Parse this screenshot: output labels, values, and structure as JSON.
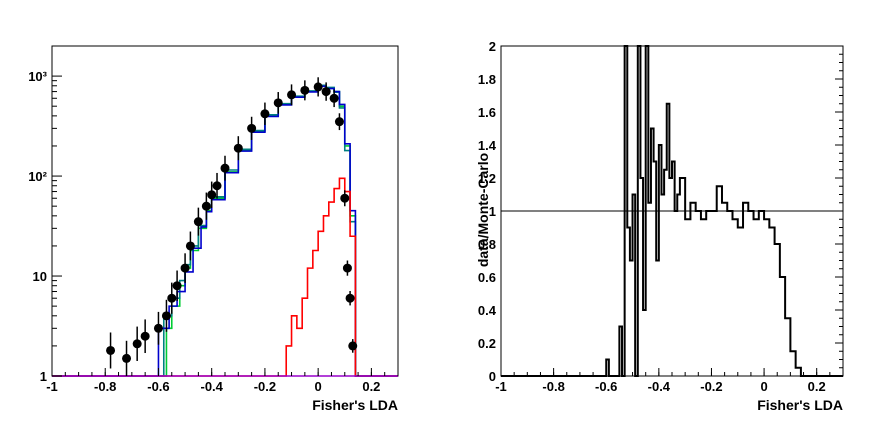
{
  "chart_data": [
    {
      "type": "line",
      "xlabel": "Fisher's LDA",
      "ylabel": "",
      "xlim": [
        -1,
        0.3
      ],
      "ylim": [
        1,
        2000
      ],
      "yscale": "log",
      "grid": false,
      "x_ticks": [
        "-1",
        "-0.8",
        "-0.6",
        "-0.4",
        "-0.2",
        "0",
        "0.2"
      ],
      "y_ticks": [
        "1",
        "10",
        "10²",
        "10³"
      ],
      "series": [
        {
          "color": "#00cc33",
          "style": "step",
          "x": [
            -1.0,
            -0.6,
            -0.57,
            -0.55,
            -0.52,
            -0.5,
            -0.48,
            -0.45,
            -0.42,
            -0.4,
            -0.35,
            -0.3,
            -0.25,
            -0.2,
            -0.15,
            -0.1,
            -0.05,
            0.0,
            0.03,
            0.06,
            0.08,
            0.1,
            0.12,
            0.14,
            0.3
          ],
          "y": [
            1,
            1,
            3,
            5,
            8,
            12,
            18,
            30,
            45,
            60,
            110,
            180,
            280,
            400,
            520,
            620,
            700,
            800,
            760,
            700,
            500,
            200,
            40,
            1,
            1
          ]
        },
        {
          "color": "#008080",
          "style": "step",
          "x": [
            -1.0,
            -0.6,
            -0.58,
            -0.55,
            -0.52,
            -0.5,
            -0.48,
            -0.45,
            -0.42,
            -0.4,
            -0.35,
            -0.3,
            -0.25,
            -0.2,
            -0.15,
            -0.1,
            -0.05,
            0.0,
            0.03,
            0.06,
            0.08,
            0.1,
            0.12,
            0.14,
            0.3
          ],
          "y": [
            1,
            1,
            4,
            6,
            9,
            13,
            20,
            32,
            48,
            62,
            115,
            185,
            285,
            410,
            530,
            630,
            710,
            810,
            770,
            690,
            480,
            180,
            35,
            1,
            1
          ]
        },
        {
          "color": "#0000cc",
          "style": "step",
          "x": [
            -1.0,
            -0.62,
            -0.6,
            -0.56,
            -0.53,
            -0.5,
            -0.47,
            -0.44,
            -0.42,
            -0.4,
            -0.35,
            -0.3,
            -0.25,
            -0.2,
            -0.15,
            -0.1,
            -0.05,
            0.0,
            0.03,
            0.06,
            0.08,
            0.1,
            0.12,
            0.14,
            0.3
          ],
          "y": [
            1,
            1,
            3,
            5,
            7,
            11,
            19,
            31,
            44,
            58,
            108,
            178,
            275,
            395,
            515,
            615,
            695,
            790,
            750,
            700,
            520,
            210,
            45,
            1,
            1
          ]
        },
        {
          "color": "#ff0000",
          "style": "step",
          "x": [
            -1.0,
            -0.14,
            -0.12,
            -0.1,
            -0.08,
            -0.06,
            -0.04,
            -0.02,
            0.0,
            0.02,
            0.04,
            0.06,
            0.08,
            0.1,
            0.12,
            0.14,
            0.3
          ],
          "y": [
            1,
            1,
            2,
            4,
            3,
            6,
            12,
            18,
            28,
            40,
            55,
            75,
            95,
            70,
            25,
            1,
            1
          ]
        },
        {
          "color": "#9900cc",
          "style": "step",
          "x": [
            -1.0,
            0.3
          ],
          "y": [
            1,
            1
          ]
        },
        {
          "color": "#000000",
          "style": "markers",
          "x": [
            -0.78,
            -0.72,
            -0.68,
            -0.65,
            -0.6,
            -0.57,
            -0.55,
            -0.53,
            -0.5,
            -0.48,
            -0.45,
            -0.42,
            -0.4,
            -0.38,
            -0.35,
            -0.3,
            -0.25,
            -0.2,
            -0.15,
            -0.1,
            -0.05,
            0.0,
            0.03,
            0.06,
            0.08,
            0.1,
            0.11,
            0.12,
            0.13
          ],
          "y": [
            1.8,
            1.5,
            2.1,
            2.5,
            3,
            4,
            6,
            8,
            12,
            20,
            35,
            50,
            65,
            80,
            120,
            190,
            300,
            420,
            540,
            650,
            720,
            780,
            700,
            600,
            350,
            60,
            12,
            6,
            2
          ]
        }
      ]
    },
    {
      "type": "line",
      "xlabel": "Fisher's LDA",
      "ylabel": "data/Monte-Carlo",
      "xlim": [
        -1,
        0.3
      ],
      "ylim": [
        0,
        2
      ],
      "grid": false,
      "reference_line": 1,
      "x_ticks": [
        "-1",
        "-0.8",
        "-0.6",
        "-0.4",
        "-0.2",
        "0",
        "0.2"
      ],
      "y_ticks": [
        "0",
        "0.2",
        "0.4",
        "0.6",
        "0.8",
        "1",
        "1.2",
        "1.4",
        "1.6",
        "1.8",
        "2"
      ],
      "series": [
        {
          "color": "#000000",
          "style": "step",
          "x": [
            -1.0,
            -0.6,
            -0.59,
            -0.55,
            -0.54,
            -0.53,
            -0.52,
            -0.51,
            -0.5,
            -0.49,
            -0.48,
            -0.47,
            -0.46,
            -0.45,
            -0.44,
            -0.43,
            -0.42,
            -0.41,
            -0.4,
            -0.39,
            -0.38,
            -0.37,
            -0.36,
            -0.35,
            -0.34,
            -0.33,
            -0.32,
            -0.3,
            -0.28,
            -0.26,
            -0.24,
            -0.22,
            -0.2,
            -0.18,
            -0.16,
            -0.14,
            -0.12,
            -0.1,
            -0.08,
            -0.06,
            -0.04,
            -0.02,
            0.0,
            0.02,
            0.04,
            0.06,
            0.08,
            0.1,
            0.12,
            0.14,
            0.3
          ],
          "y": [
            0,
            0.1,
            0,
            0.3,
            0,
            2,
            0.9,
            0.7,
            1.1,
            0,
            2,
            1.2,
            0.4,
            2,
            1.05,
            1.5,
            1.3,
            0.7,
            1.4,
            1.1,
            1.25,
            1.65,
            1.2,
            1.3,
            1.0,
            1.1,
            1.2,
            0.95,
            1.05,
            1.0,
            0.95,
            1.0,
            1.0,
            1.15,
            1.05,
            1.0,
            0.95,
            0.9,
            1.05,
            1.0,
            0.95,
            1.0,
            0.95,
            0.9,
            0.8,
            0.6,
            0.35,
            0.15,
            0.05,
            0,
            0
          ]
        }
      ]
    }
  ]
}
